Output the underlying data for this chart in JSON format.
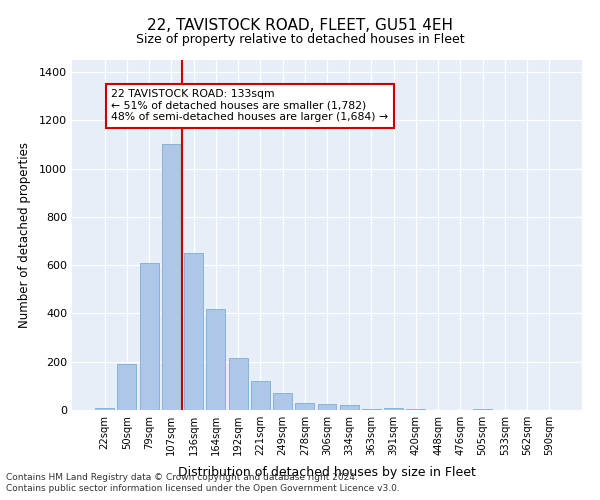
{
  "title": "22, TAVISTOCK ROAD, FLEET, GU51 4EH",
  "subtitle": "Size of property relative to detached houses in Fleet",
  "xlabel": "Distribution of detached houses by size in Fleet",
  "ylabel": "Number of detached properties",
  "categories": [
    "22sqm",
    "50sqm",
    "79sqm",
    "107sqm",
    "136sqm",
    "164sqm",
    "192sqm",
    "221sqm",
    "249sqm",
    "278sqm",
    "306sqm",
    "334sqm",
    "363sqm",
    "391sqm",
    "420sqm",
    "448sqm",
    "476sqm",
    "505sqm",
    "533sqm",
    "562sqm",
    "590sqm"
  ],
  "values": [
    10,
    190,
    610,
    1100,
    650,
    420,
    215,
    120,
    70,
    30,
    25,
    20,
    5,
    10,
    5,
    0,
    0,
    5,
    0,
    0,
    0
  ],
  "bar_color": "#aec6e8",
  "bar_edge_color": "#7bafd4",
  "vline_x_index": 4,
  "vline_color": "#cc0000",
  "annotation_text": "22 TAVISTOCK ROAD: 133sqm\n← 51% of detached houses are smaller (1,782)\n48% of semi-detached houses are larger (1,684) →",
  "annotation_box_color": "#cc0000",
  "ylim": [
    0,
    1450
  ],
  "yticks": [
    0,
    200,
    400,
    600,
    800,
    1000,
    1200,
    1400
  ],
  "background_color": "#e8eef8",
  "footer_line1": "Contains HM Land Registry data © Crown copyright and database right 2024.",
  "footer_line2": "Contains public sector information licensed under the Open Government Licence v3.0."
}
